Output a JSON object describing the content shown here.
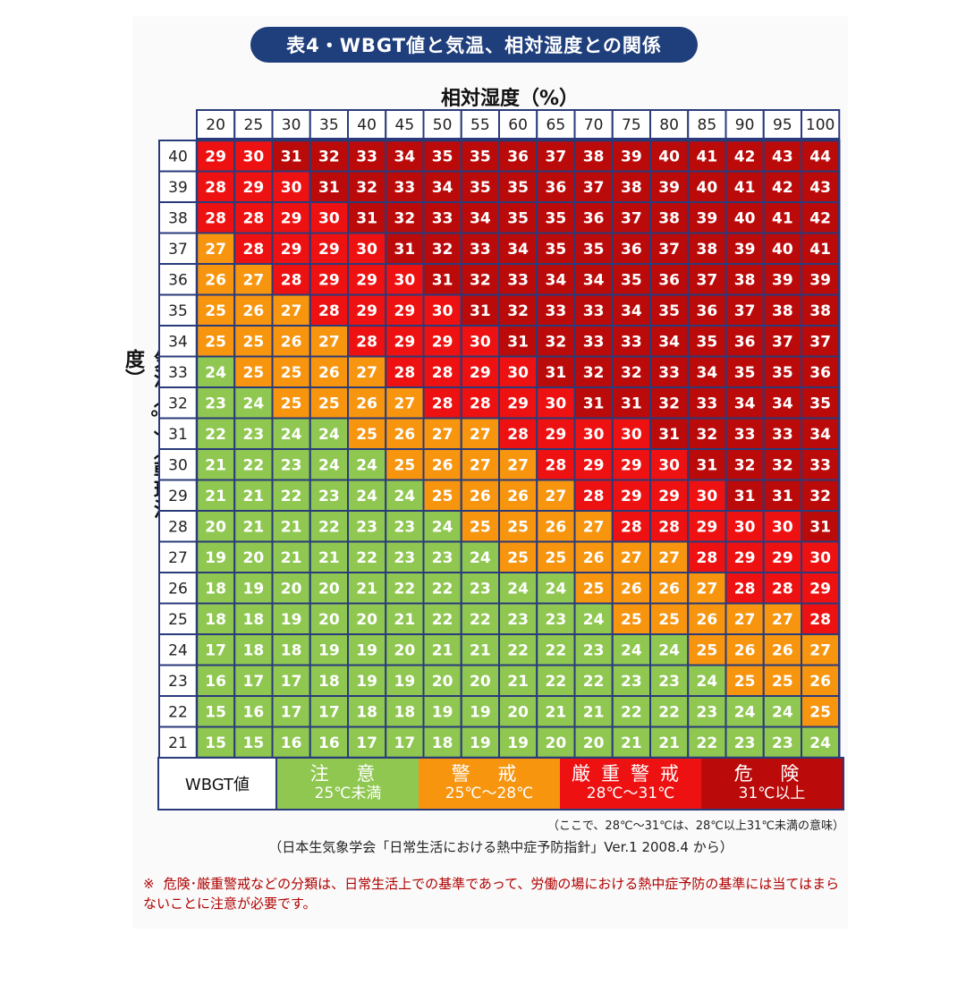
{
  "title": "表4・WBGT値と気温、相対湿度との関係",
  "colors": {
    "title_bg": "#1f3e7c",
    "caution": "#8fc751",
    "warning": "#f7950f",
    "severe_warning": "#ee1111",
    "danger": "#bb0a0a",
    "grid": "#2a3b7a",
    "note_text": "#b00000"
  },
  "legend": {
    "key_label": "WBGT値",
    "items": [
      {
        "name": "注 意",
        "range": "25℃未満",
        "color": "#8fc751"
      },
      {
        "name": "警 戒",
        "range": "25℃～28℃",
        "color": "#f7950f"
      },
      {
        "name": "厳重警戒",
        "range": "28℃～31℃",
        "color": "#ee1111"
      },
      {
        "name": "危 険",
        "range": "31℃以上",
        "color": "#bb0a0a"
      }
    ]
  },
  "footnote": "（ここで、28℃～31℃は、28℃以上31℃未満の意味）",
  "source": "（日本生気象学会「日常生活における熱中症予防指針」Ver.1 2008.4 から）",
  "caution_note": {
    "mark": "※",
    "text": "危険･厳重警戒などの分類は、日常生活上での基準であって、労働の場における熱中症予防の基準には当てはまらないことに注意が必要です。"
  },
  "chart_data": {
    "type": "heatmap",
    "title": "表4・WBGT値と気温、相対湿度との関係",
    "xlabel": "相対湿度（%）",
    "ylabel": "気温（℃）（乾球温度）",
    "x": [
      20,
      25,
      30,
      35,
      40,
      45,
      50,
      55,
      60,
      65,
      70,
      75,
      80,
      85,
      90,
      95,
      100
    ],
    "y": [
      40,
      39,
      38,
      37,
      36,
      35,
      34,
      33,
      32,
      31,
      30,
      29,
      28,
      27,
      26,
      25,
      24,
      23,
      22,
      21
    ],
    "values": [
      [
        29,
        30,
        31,
        32,
        33,
        34,
        35,
        35,
        36,
        37,
        38,
        39,
        40,
        41,
        42,
        43,
        44
      ],
      [
        28,
        29,
        30,
        31,
        32,
        33,
        34,
        35,
        35,
        36,
        37,
        38,
        39,
        40,
        41,
        42,
        43
      ],
      [
        28,
        28,
        29,
        30,
        31,
        32,
        33,
        34,
        35,
        35,
        36,
        37,
        38,
        39,
        40,
        41,
        42
      ],
      [
        27,
        28,
        29,
        29,
        30,
        31,
        32,
        33,
        34,
        35,
        35,
        36,
        37,
        38,
        39,
        40,
        41
      ],
      [
        26,
        27,
        28,
        29,
        29,
        30,
        31,
        32,
        33,
        34,
        34,
        35,
        36,
        37,
        38,
        39,
        39
      ],
      [
        25,
        26,
        27,
        28,
        29,
        29,
        30,
        31,
        32,
        33,
        33,
        34,
        35,
        36,
        37,
        38,
        38
      ],
      [
        25,
        25,
        26,
        27,
        28,
        29,
        29,
        30,
        31,
        32,
        33,
        33,
        34,
        35,
        36,
        37,
        37
      ],
      [
        24,
        25,
        25,
        26,
        27,
        28,
        28,
        29,
        30,
        31,
        32,
        32,
        33,
        34,
        35,
        35,
        36
      ],
      [
        23,
        24,
        25,
        25,
        26,
        27,
        28,
        28,
        29,
        30,
        31,
        31,
        32,
        33,
        34,
        34,
        35
      ],
      [
        22,
        23,
        24,
        24,
        25,
        26,
        27,
        27,
        28,
        29,
        30,
        30,
        31,
        32,
        33,
        33,
        34
      ],
      [
        21,
        22,
        23,
        24,
        24,
        25,
        26,
        27,
        27,
        28,
        29,
        29,
        30,
        31,
        32,
        32,
        33
      ],
      [
        21,
        21,
        22,
        23,
        24,
        24,
        25,
        26,
        26,
        27,
        28,
        29,
        29,
        30,
        31,
        31,
        32
      ],
      [
        20,
        21,
        21,
        22,
        23,
        23,
        24,
        25,
        25,
        26,
        27,
        28,
        28,
        29,
        30,
        30,
        31
      ],
      [
        19,
        20,
        21,
        21,
        22,
        23,
        23,
        24,
        25,
        25,
        26,
        27,
        27,
        28,
        29,
        29,
        30
      ],
      [
        18,
        19,
        20,
        20,
        21,
        22,
        22,
        23,
        24,
        24,
        25,
        26,
        26,
        27,
        28,
        28,
        29
      ],
      [
        18,
        18,
        19,
        20,
        20,
        21,
        22,
        22,
        23,
        23,
        24,
        25,
        25,
        26,
        27,
        27,
        28
      ],
      [
        17,
        18,
        18,
        19,
        19,
        20,
        21,
        21,
        22,
        22,
        23,
        24,
        24,
        25,
        26,
        26,
        27
      ],
      [
        16,
        17,
        17,
        18,
        19,
        19,
        20,
        20,
        21,
        22,
        22,
        23,
        23,
        24,
        25,
        25,
        26
      ],
      [
        15,
        16,
        17,
        17,
        18,
        18,
        19,
        19,
        20,
        21,
        21,
        22,
        22,
        23,
        24,
        24,
        25
      ],
      [
        15,
        15,
        16,
        16,
        17,
        17,
        18,
        19,
        19,
        20,
        20,
        21,
        21,
        22,
        23,
        23,
        24
      ]
    ],
    "thresholds": [
      25,
      28,
      31
    ],
    "threshold_colors": [
      "#8fc751",
      "#f7950f",
      "#ee1111",
      "#bb0a0a"
    ]
  }
}
